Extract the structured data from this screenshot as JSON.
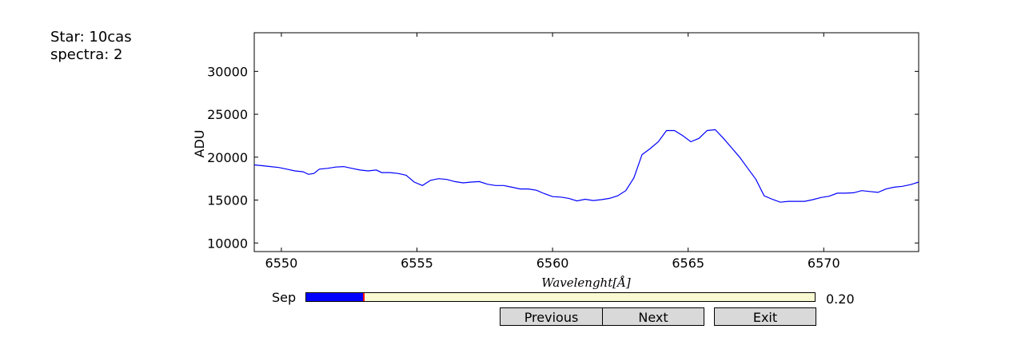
{
  "info": {
    "star": "Star: 10cas",
    "spectra": "spectra: 2"
  },
  "chart_data": {
    "type": "line",
    "title": "",
    "xlabel": "Wavelenght[Å]",
    "ylabel": "ADU",
    "xlim": [
      6549,
      6573.5
    ],
    "ylim": [
      9000,
      34500
    ],
    "xticks": [
      6550,
      6555,
      6560,
      6565,
      6570
    ],
    "yticks": [
      10000,
      15000,
      20000,
      25000,
      30000
    ],
    "grid": false,
    "line_color": "#0000ff",
    "series": [
      {
        "x": [
          6549.0,
          6549.3,
          6549.6,
          6549.9,
          6550.2,
          6550.5,
          6550.8,
          6551.0,
          6551.2,
          6551.4,
          6551.7,
          6552.0,
          6552.3,
          6552.6,
          6552.9,
          6553.2,
          6553.5,
          6553.7,
          6554.0,
          6554.3,
          6554.6,
          6554.9,
          6555.2,
          6555.5,
          6555.8,
          6556.1,
          6556.4,
          6556.7,
          6557.0,
          6557.3,
          6557.6,
          6557.9,
          6558.2,
          6558.5,
          6558.8,
          6559.1,
          6559.4,
          6559.7,
          6560.0,
          6560.3,
          6560.6,
          6560.9,
          6561.2,
          6561.5,
          6561.8,
          6562.1,
          6562.4,
          6562.7,
          6563.0,
          6563.3,
          6563.6,
          6563.9,
          6564.2,
          6564.5,
          6564.8,
          6565.1,
          6565.4,
          6565.7,
          6566.0,
          6566.3,
          6566.6,
          6566.9,
          6567.2,
          6567.5,
          6567.8,
          6568.1,
          6568.4,
          6568.7,
          6569.0,
          6569.3,
          6569.6,
          6569.9,
          6570.2,
          6570.5,
          6570.8,
          6571.1,
          6571.4,
          6571.7,
          6572.0,
          6572.3,
          6572.6,
          6572.9,
          6573.2,
          6573.5
        ],
        "values": [
          19100,
          19000,
          18900,
          18800,
          18600,
          18400,
          18300,
          18000,
          18100,
          18600,
          18700,
          18850,
          18900,
          18700,
          18500,
          18400,
          18500,
          18200,
          18200,
          18100,
          17900,
          17100,
          16700,
          17300,
          17500,
          17400,
          17150,
          17000,
          17100,
          17150,
          16850,
          16700,
          16700,
          16500,
          16300,
          16300,
          16150,
          15750,
          15400,
          15350,
          15200,
          14900,
          15100,
          14950,
          15050,
          15200,
          15500,
          16100,
          17600,
          20300,
          21000,
          21800,
          23100,
          23100,
          22500,
          21800,
          22200,
          23100,
          23200,
          22200,
          21100,
          20000,
          18700,
          17400,
          15500,
          15100,
          14750,
          14850,
          14850,
          14850,
          15050,
          15300,
          15450,
          15800,
          15800,
          15850,
          16100,
          16000,
          15900,
          16300,
          16500,
          16600,
          16800,
          17100
        ]
      }
    ]
  },
  "controls": {
    "slider_label": "Sep",
    "slider_value_text": "0.20",
    "slider_fraction": 0.113,
    "buttons": {
      "previous": "Previous",
      "next": "Next",
      "exit": "Exit"
    }
  }
}
